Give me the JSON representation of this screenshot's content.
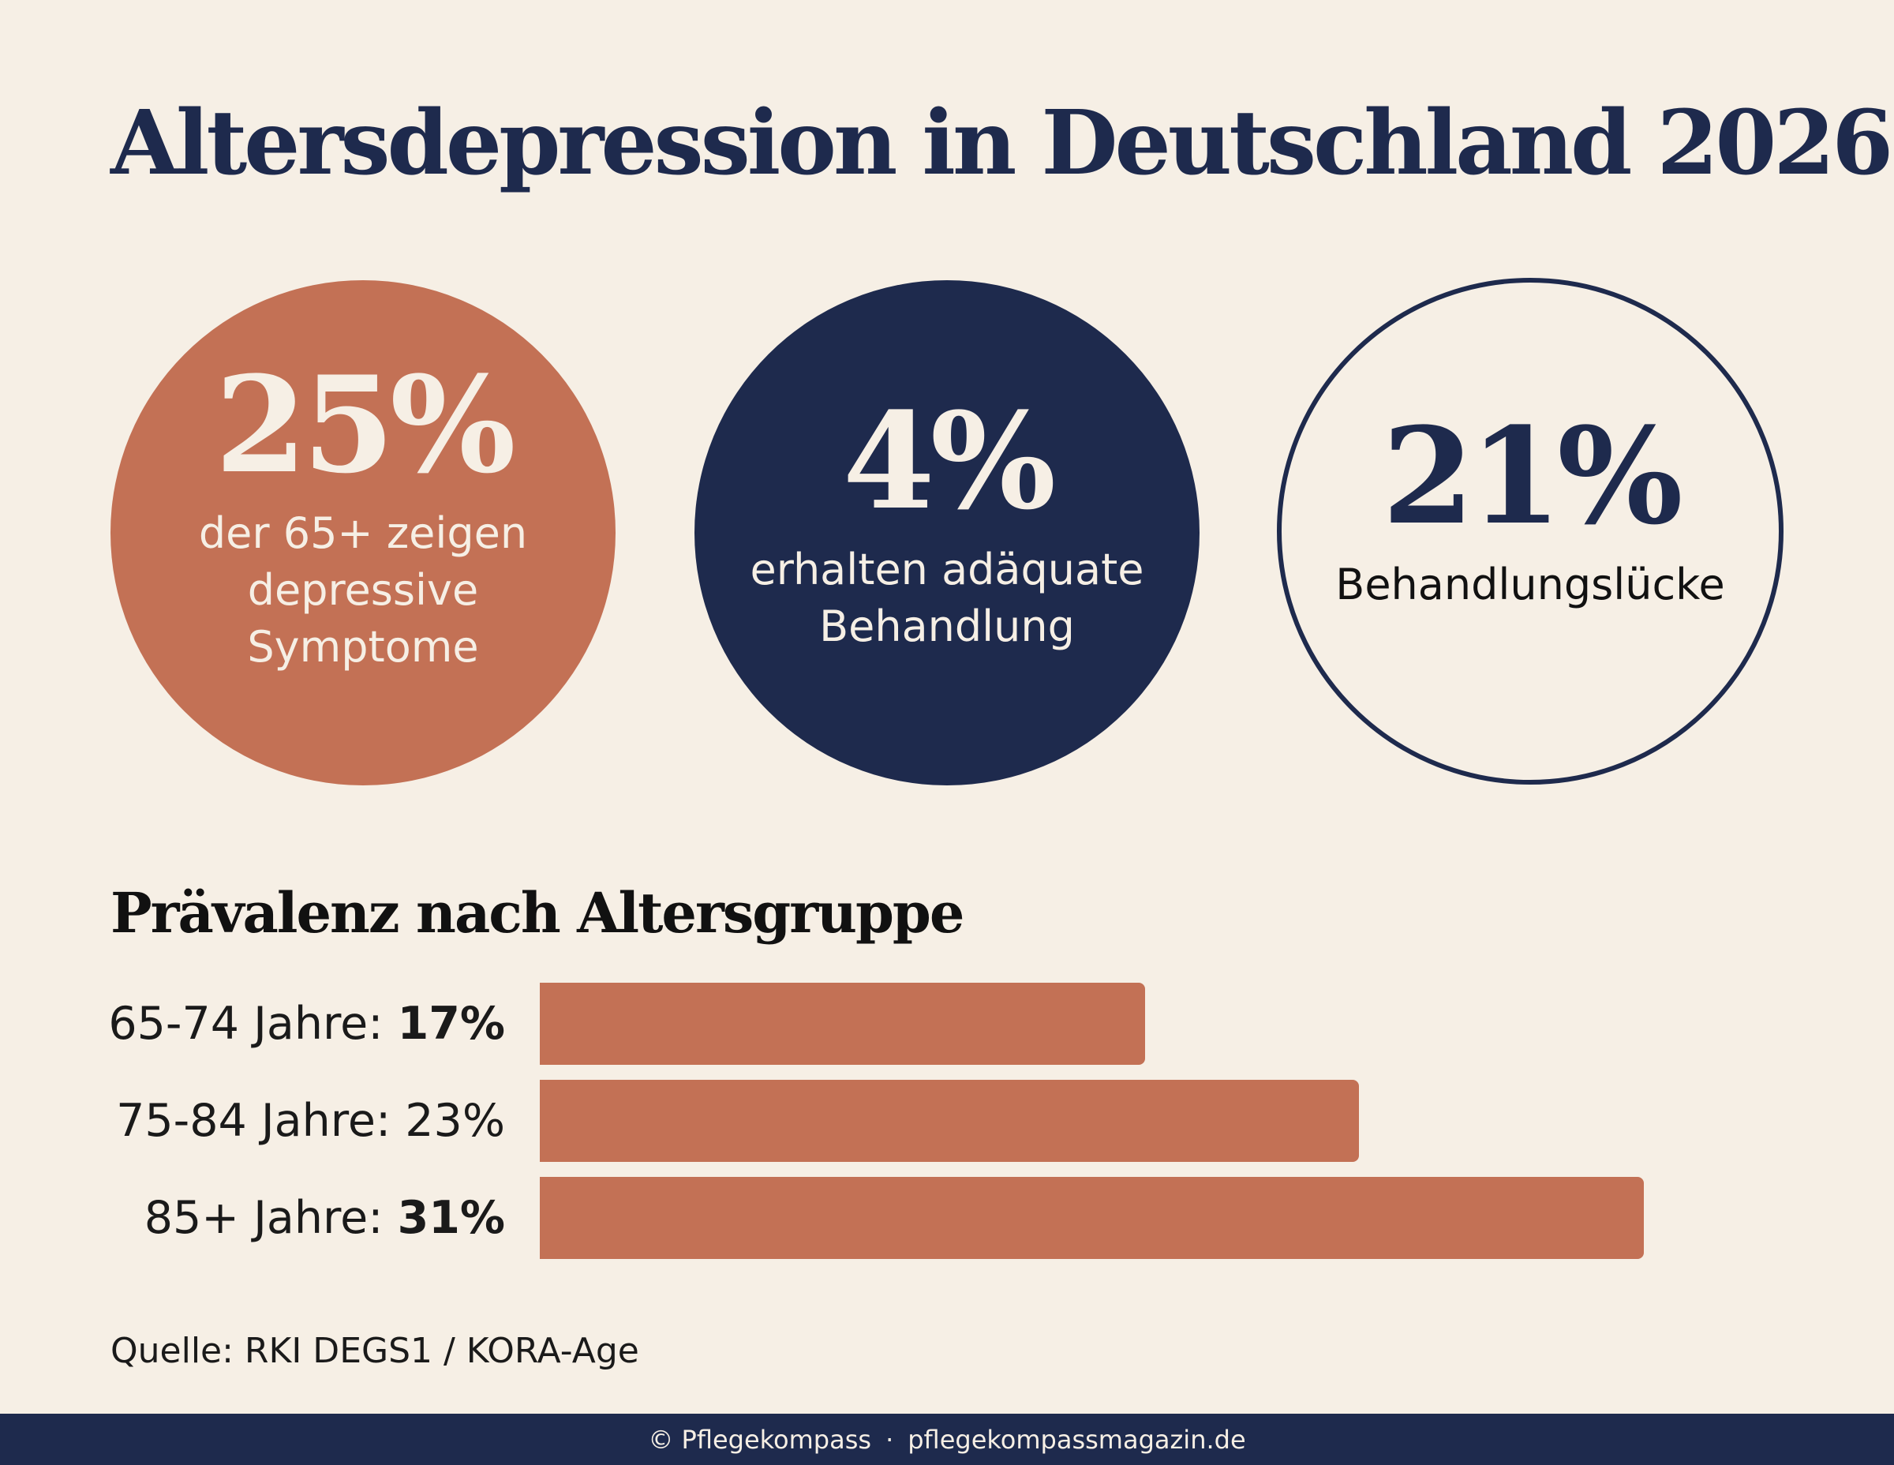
{
  "title": "Altersdepression in Deutschland 2026",
  "stats": [
    {
      "value": "25%",
      "caption": "der 65+ zeigen\ndepressive\nSymptome"
    },
    {
      "value": "4%",
      "caption": "erhalten adäquate\nBehandlung"
    },
    {
      "value": "21%",
      "caption": "Behandlungslücke"
    }
  ],
  "section_title": "Prävalenz nach Altersgruppe",
  "chart_data": {
    "type": "bar",
    "orientation": "horizontal",
    "title": "Prävalenz nach Altersgruppe",
    "categories": [
      "65-74 Jahre",
      "75-84 Jahre",
      "85+ Jahre"
    ],
    "values": [
      17,
      23,
      31
    ],
    "value_labels": [
      "17%",
      "23%",
      "31%"
    ],
    "label_prefixes": [
      "65-74 Jahre: ",
      "75-84 Jahre: ",
      "85+ Jahre: "
    ],
    "bold_values": [
      true,
      false,
      true
    ],
    "unit": "%",
    "xlim": [
      0,
      32
    ],
    "color": "#c37155",
    "grid": false
  },
  "source": "Quelle: RKI DEGS1 / KORA-Age",
  "footer": {
    "left": "© Pflegekompass",
    "separator": "·",
    "right": "pflegekompassmagazin.de"
  },
  "colors": {
    "background": "#f6efe5",
    "navy": "#1e2a4d",
    "terracotta": "#c37155"
  }
}
